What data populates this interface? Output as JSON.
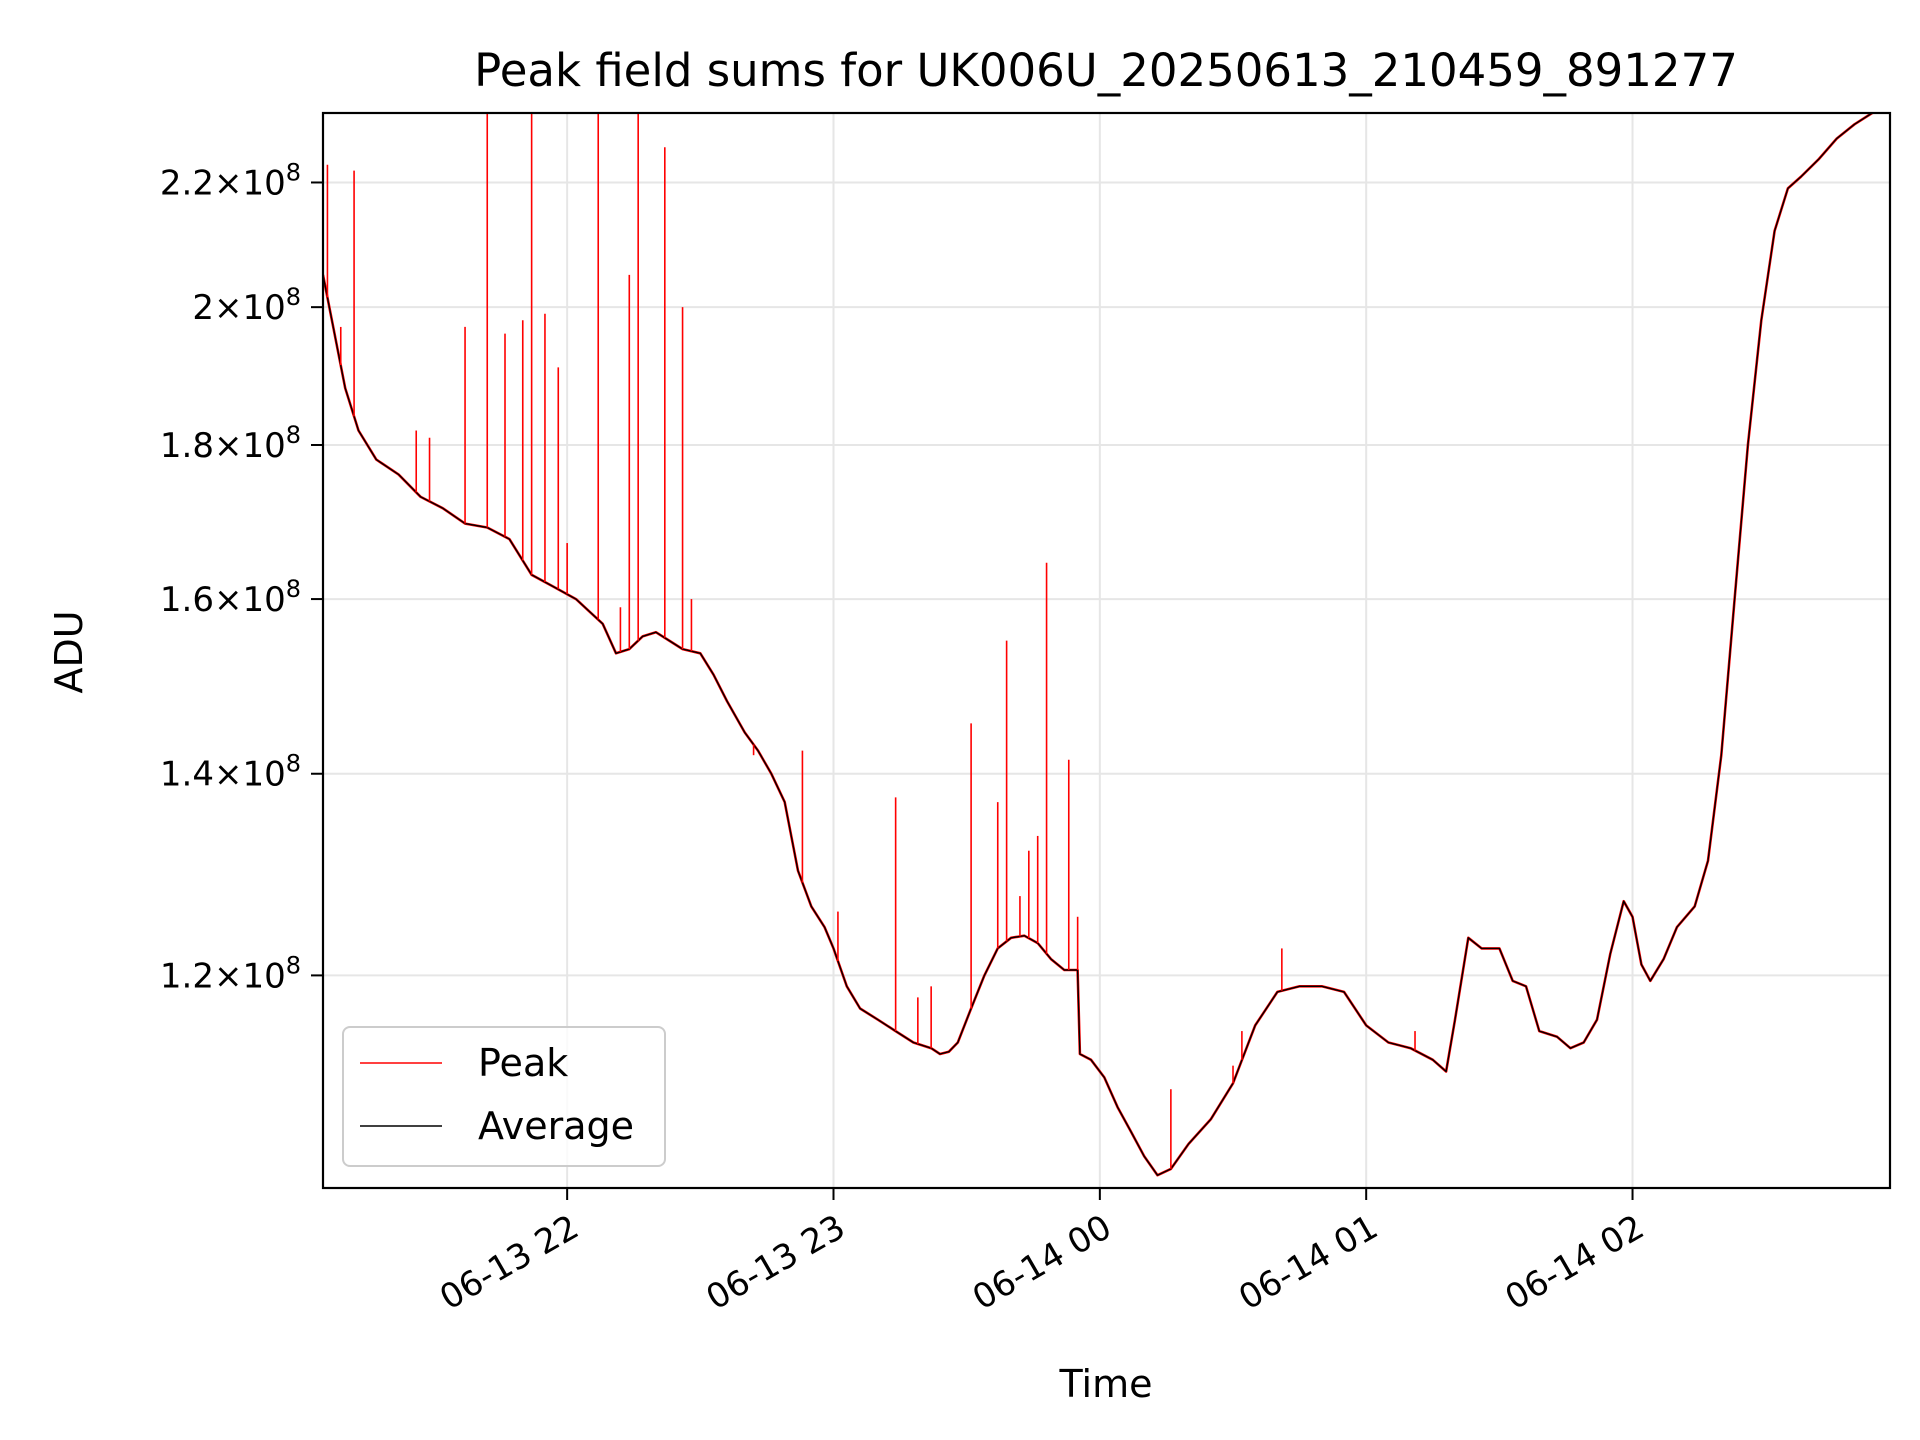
{
  "chart_data": {
    "type": "line",
    "title": "Peak field sums for UK006U_20250613_210459_891277",
    "xlabel": "Time",
    "ylabel": "ADU",
    "y_scale": "log",
    "xlim": [
      "2025-06-13 21:05",
      "2025-06-14 02:58"
    ],
    "ylim": [
      102000000,
      232000000
    ],
    "x_ticks": [
      {
        "label": "06-13 22",
        "value": "2025-06-13 22:00"
      },
      {
        "label": "06-13 23",
        "value": "2025-06-13 23:00"
      },
      {
        "label": "06-14 00",
        "value": "2025-06-14 00:00"
      },
      {
        "label": "06-14 01",
        "value": "2025-06-14 01:00"
      },
      {
        "label": "06-14 02",
        "value": "2025-06-14 02:00"
      }
    ],
    "y_ticks": [
      {
        "mantissa": "1.2",
        "exp": "8",
        "value": 120000000
      },
      {
        "mantissa": "1.4",
        "exp": "8",
        "value": 140000000
      },
      {
        "mantissa": "1.6",
        "exp": "8",
        "value": 160000000
      },
      {
        "mantissa": "1.8",
        "exp": "8",
        "value": 180000000
      },
      {
        "mantissa": "2",
        "exp": "8",
        "value": 200000000
      },
      {
        "mantissa": "2.2",
        "exp": "8",
        "value": 220000000
      }
    ],
    "grid": true,
    "legend_position": "lower-left",
    "series": [
      {
        "name": "Average",
        "color": "#000000",
        "points": [
          [
            "2025-06-13 21:05",
            205000000.0
          ],
          [
            "2025-06-13 21:07",
            198000000.0
          ],
          [
            "2025-06-13 21:10",
            188000000.0
          ],
          [
            "2025-06-13 21:13",
            182000000.0
          ],
          [
            "2025-06-13 21:17",
            178000000.0
          ],
          [
            "2025-06-13 21:22",
            176000000.0
          ],
          [
            "2025-06-13 21:27",
            173000000.0
          ],
          [
            "2025-06-13 21:32",
            171500000.0
          ],
          [
            "2025-06-13 21:37",
            169500000.0
          ],
          [
            "2025-06-13 21:42",
            169000000.0
          ],
          [
            "2025-06-13 21:47",
            167500000.0
          ],
          [
            "2025-06-13 21:52",
            163000000.0
          ],
          [
            "2025-06-13 21:57",
            161500000.0
          ],
          [
            "2025-06-13 22:02",
            160000000.0
          ],
          [
            "2025-06-13 22:05",
            158500000.0
          ],
          [
            "2025-06-13 22:08",
            157000000.0
          ],
          [
            "2025-06-13 22:11",
            153500000.0
          ],
          [
            "2025-06-13 22:14",
            154000000.0
          ],
          [
            "2025-06-13 22:17",
            155500000.0
          ],
          [
            "2025-06-13 22:20",
            156000000.0
          ],
          [
            "2025-06-13 22:23",
            155000000.0
          ],
          [
            "2025-06-13 22:26",
            154000000.0
          ],
          [
            "2025-06-13 22:30",
            153500000.0
          ],
          [
            "2025-06-13 22:33",
            151000000.0
          ],
          [
            "2025-06-13 22:36",
            148000000.0
          ],
          [
            "2025-06-13 22:40",
            144500000.0
          ],
          [
            "2025-06-13 22:43",
            142500000.0
          ],
          [
            "2025-06-13 22:46",
            140000000.0
          ],
          [
            "2025-06-13 22:49",
            137000000.0
          ],
          [
            "2025-06-13 22:52",
            130000000.0
          ],
          [
            "2025-06-13 22:55",
            126500000.0
          ],
          [
            "2025-06-13 22:58",
            124500000.0
          ],
          [
            "2025-06-13 23:00",
            122500000.0
          ],
          [
            "2025-06-13 23:03",
            119000000.0
          ],
          [
            "2025-06-13 23:06",
            117000000.0
          ],
          [
            "2025-06-13 23:10",
            116000000.0
          ],
          [
            "2025-06-13 23:14",
            115000000.0
          ],
          [
            "2025-06-13 23:18",
            114000000.0
          ],
          [
            "2025-06-13 23:22",
            113500000.0
          ],
          [
            "2025-06-13 23:24",
            113000000.0
          ],
          [
            "2025-06-13 23:26",
            113200000.0
          ],
          [
            "2025-06-13 23:28",
            114000000.0
          ],
          [
            "2025-06-13 23:31",
            117000000.0
          ],
          [
            "2025-06-13 23:34",
            120000000.0
          ],
          [
            "2025-06-13 23:37",
            122500000.0
          ],
          [
            "2025-06-13 23:40",
            123500000.0
          ],
          [
            "2025-06-13 23:43",
            123700000.0
          ],
          [
            "2025-06-13 23:46",
            123000000.0
          ],
          [
            "2025-06-13 23:49",
            121500000.0
          ],
          [
            "2025-06-13 23:52",
            120500000.0
          ],
          [
            "2025-06-13 23:55",
            120500000.0
          ],
          [
            "2025-06-13 23:55.5",
            113000000.0
          ],
          [
            "2025-06-13 23:58",
            112500000.0
          ],
          [
            "2025-06-14 00:01",
            111000000.0
          ],
          [
            "2025-06-14 00:04",
            108500000.0
          ],
          [
            "2025-06-14 00:07",
            106500000.0
          ],
          [
            "2025-06-14 00:10",
            104500000.0
          ],
          [
            "2025-06-14 00:13",
            103000000.0
          ],
          [
            "2025-06-14 00:16",
            103500000.0
          ],
          [
            "2025-06-14 00:20",
            105500000.0
          ],
          [
            "2025-06-14 00:25",
            107500000.0
          ],
          [
            "2025-06-14 00:30",
            110500000.0
          ],
          [
            "2025-06-14 00:35",
            115500000.0
          ],
          [
            "2025-06-14 00:40",
            118500000.0
          ],
          [
            "2025-06-14 00:45",
            119000000.0
          ],
          [
            "2025-06-14 00:50",
            119000000.0
          ],
          [
            "2025-06-14 00:55",
            118500000.0
          ],
          [
            "2025-06-14 01:00",
            115500000.0
          ],
          [
            "2025-06-14 01:05",
            114000000.0
          ],
          [
            "2025-06-14 01:10",
            113500000.0
          ],
          [
            "2025-06-14 01:15",
            112500000.0
          ],
          [
            "2025-06-14 01:18",
            111500000.0
          ],
          [
            "2025-06-14 01:20",
            116000000.0
          ],
          [
            "2025-06-14 01:23",
            123500000.0
          ],
          [
            "2025-06-14 01:26",
            122500000.0
          ],
          [
            "2025-06-14 01:30",
            122500000.0
          ],
          [
            "2025-06-14 01:33",
            119500000.0
          ],
          [
            "2025-06-14 01:36",
            119000000.0
          ],
          [
            "2025-06-14 01:39",
            115000000.0
          ],
          [
            "2025-06-14 01:43",
            114500000.0
          ],
          [
            "2025-06-14 01:46",
            113500000.0
          ],
          [
            "2025-06-14 01:49",
            114000000.0
          ],
          [
            "2025-06-14 01:52",
            116000000.0
          ],
          [
            "2025-06-14 01:55",
            122000000.0
          ],
          [
            "2025-06-14 01:58",
            127000000.0
          ],
          [
            "2025-06-14 02:00",
            125500000.0
          ],
          [
            "2025-06-14 02:02",
            121000000.0
          ],
          [
            "2025-06-14 02:04",
            119500000.0
          ],
          [
            "2025-06-14 02:07",
            121500000.0
          ],
          [
            "2025-06-14 02:10",
            124500000.0
          ],
          [
            "2025-06-14 02:14",
            126500000.0
          ],
          [
            "2025-06-14 02:17",
            131000000.0
          ],
          [
            "2025-06-14 02:20",
            142000000.0
          ],
          [
            "2025-06-14 02:23",
            160000000.0
          ],
          [
            "2025-06-14 02:26",
            180000000.0
          ],
          [
            "2025-06-14 02:29",
            198000000.0
          ],
          [
            "2025-06-14 02:32",
            212000000.0
          ],
          [
            "2025-06-14 02:35",
            219000000.0
          ],
          [
            "2025-06-14 02:38",
            221000000.0
          ],
          [
            "2025-06-14 02:42",
            224000000.0
          ],
          [
            "2025-06-14 02:46",
            227500000.0
          ],
          [
            "2025-06-14 02:50",
            230000000.0
          ],
          [
            "2025-06-14 02:54",
            232000000.0
          ],
          [
            "2025-06-14 02:58",
            233000000.0
          ]
        ]
      },
      {
        "name": "Peak",
        "color": "#ff0000",
        "spikes": [
          [
            "2025-06-13 21:06",
            223000000.0
          ],
          [
            "2025-06-13 21:09",
            197000000.0
          ],
          [
            "2025-06-13 21:12",
            222000000.0
          ],
          [
            "2025-06-13 21:26",
            182000000.0
          ],
          [
            "2025-06-13 21:29",
            181000000.0
          ],
          [
            "2025-06-13 21:37",
            197000000.0
          ],
          [
            "2025-06-13 21:42",
            245000000.0
          ],
          [
            "2025-06-13 21:46",
            196000000.0
          ],
          [
            "2025-06-13 21:50",
            198000000.0
          ],
          [
            "2025-06-13 21:52",
            245000000.0
          ],
          [
            "2025-06-13 21:55",
            199000000.0
          ],
          [
            "2025-06-13 21:58",
            191000000.0
          ],
          [
            "2025-06-13 22:00",
            167000000.0
          ],
          [
            "2025-06-13 22:07",
            245000000.0
          ],
          [
            "2025-06-13 22:12",
            159000000.0
          ],
          [
            "2025-06-13 22:14",
            205000000.0
          ],
          [
            "2025-06-13 22:16",
            245000000.0
          ],
          [
            "2025-06-13 22:22",
            226000000.0
          ],
          [
            "2025-06-13 22:26",
            200000000.0
          ],
          [
            "2025-06-13 22:28",
            160000000.0
          ],
          [
            "2025-06-13 22:42",
            142000000.0
          ],
          [
            "2025-06-13 22:53",
            142500000.0
          ],
          [
            "2025-06-13 23:01",
            126000000.0
          ],
          [
            "2025-06-13 23:14",
            137500000.0
          ],
          [
            "2025-06-13 23:19",
            118000000.0
          ],
          [
            "2025-06-13 23:22",
            119000000.0
          ],
          [
            "2025-06-13 23:31",
            145500000.0
          ],
          [
            "2025-06-13 23:37",
            137000000.0
          ],
          [
            "2025-06-13 23:39",
            155000000.0
          ],
          [
            "2025-06-13 23:42",
            127500000.0
          ],
          [
            "2025-06-13 23:44",
            132000000.0
          ],
          [
            "2025-06-13 23:46",
            133500000.0
          ],
          [
            "2025-06-13 23:48",
            164500000.0
          ],
          [
            "2025-06-13 23:53",
            141500000.0
          ],
          [
            "2025-06-13 23:55",
            125500000.0
          ],
          [
            "2025-06-14 00:16",
            110000000.0
          ],
          [
            "2025-06-14 00:30",
            112000000.0
          ],
          [
            "2025-06-14 00:32",
            115000000.0
          ],
          [
            "2025-06-14 00:41",
            122500000.0
          ],
          [
            "2025-06-14 01:11",
            115000000.0
          ]
        ]
      }
    ]
  },
  "legend": {
    "peak_label": "Peak",
    "average_label": "Average"
  }
}
